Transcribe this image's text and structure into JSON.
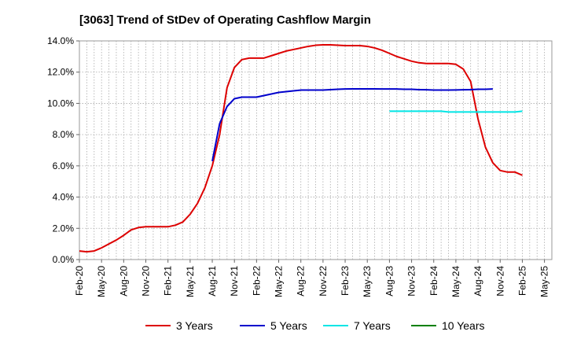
{
  "chart_data": {
    "type": "line",
    "title": "[3063]  Trend of StDev of Operating Cashflow Margin",
    "xlabel": "",
    "ylabel": "",
    "ylim": [
      0,
      14
    ],
    "y_ticks": [
      "0.0%",
      "2.0%",
      "4.0%",
      "6.0%",
      "8.0%",
      "10.0%",
      "12.0%",
      "14.0%"
    ],
    "y_tick_values": [
      0,
      2,
      4,
      6,
      8,
      10,
      12,
      14
    ],
    "x_tick_labels": [
      "Feb-20",
      "May-20",
      "Aug-20",
      "Nov-20",
      "Feb-21",
      "May-21",
      "Aug-21",
      "Nov-21",
      "Feb-22",
      "May-22",
      "Aug-22",
      "Nov-22",
      "Feb-23",
      "May-23",
      "Aug-23",
      "Nov-23",
      "Feb-24",
      "May-24",
      "Aug-24",
      "Nov-24",
      "Feb-25",
      "May-25"
    ],
    "x_month_count": 64,
    "grid": true,
    "legend_position": "bottom",
    "series": [
      {
        "name": "3 Years",
        "color": "#dd0000",
        "start_month": 0,
        "values": [
          0.55,
          0.5,
          0.55,
          0.75,
          1.0,
          1.25,
          1.55,
          1.9,
          2.05,
          2.1,
          2.1,
          2.1,
          2.1,
          2.2,
          2.4,
          2.9,
          3.6,
          4.6,
          6.0,
          8.0,
          11.0,
          12.3,
          12.8,
          12.9,
          12.9,
          12.9,
          13.05,
          13.2,
          13.35,
          13.45,
          13.55,
          13.65,
          13.72,
          13.75,
          13.75,
          13.72,
          13.7,
          13.7,
          13.7,
          13.65,
          13.55,
          13.4,
          13.2,
          13.0,
          12.85,
          12.7,
          12.6,
          12.55,
          12.55,
          12.55,
          12.55,
          12.5,
          12.2,
          11.4,
          9.0,
          7.2,
          6.2,
          5.7,
          5.6,
          5.6,
          5.4
        ]
      },
      {
        "name": "5 Years",
        "color": "#0000cc",
        "start_month": 18,
        "values": [
          6.3,
          8.7,
          9.8,
          10.3,
          10.4,
          10.4,
          10.4,
          10.5,
          10.6,
          10.7,
          10.75,
          10.8,
          10.85,
          10.85,
          10.85,
          10.85,
          10.88,
          10.9,
          10.92,
          10.93,
          10.93,
          10.93,
          10.93,
          10.92,
          10.92,
          10.92,
          10.9,
          10.9,
          10.88,
          10.87,
          10.85,
          10.85,
          10.85,
          10.86,
          10.87,
          10.88,
          10.9,
          10.9,
          10.92
        ]
      },
      {
        "name": "7 Years",
        "color": "#00e5e5",
        "start_month": 42,
        "values": [
          9.5,
          9.5,
          9.5,
          9.5,
          9.5,
          9.5,
          9.5,
          9.5,
          9.45,
          9.45,
          9.45,
          9.45,
          9.45,
          9.45,
          9.45,
          9.45,
          9.45,
          9.45,
          9.5
        ]
      },
      {
        "name": "10 Years",
        "color": "#008000",
        "start_month": 0,
        "values": []
      }
    ]
  }
}
